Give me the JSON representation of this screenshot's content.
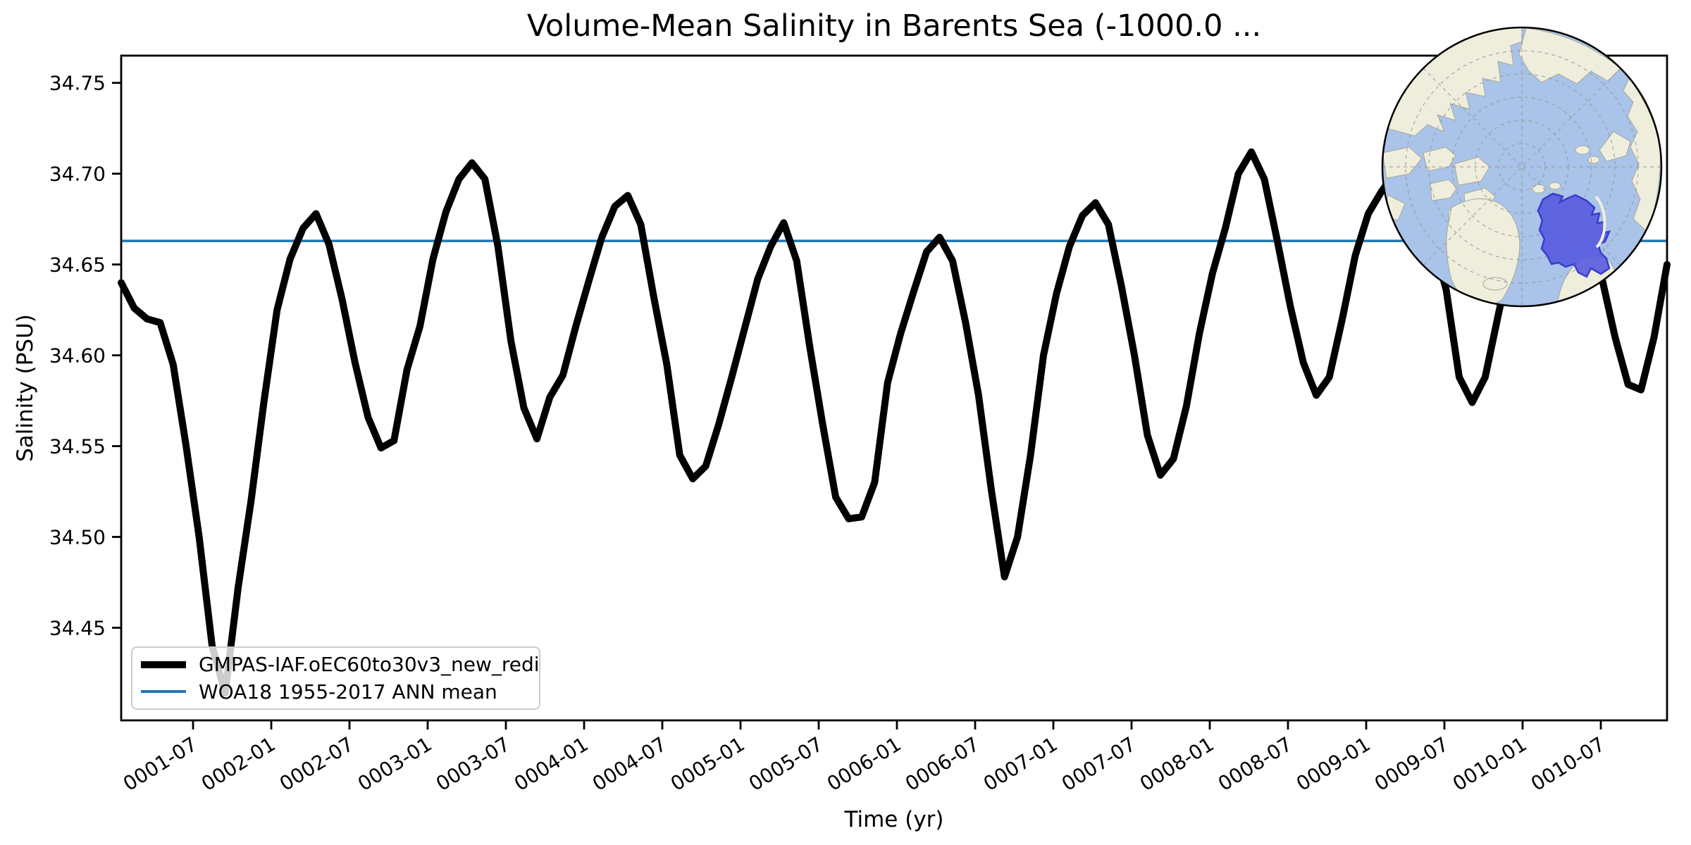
{
  "title": "Volume-Mean Salinity in Barents Sea (-1000.0 ...",
  "axes": {
    "xlabel": "Time (yr)",
    "ylabel": "Salinity (PSU)"
  },
  "legend": [
    {
      "label": "GMPAS-IAF.oEC60to30v3_new_redi",
      "color": "#000000",
      "style": "thick"
    },
    {
      "label": "WOA18 1955-2017 ANN mean",
      "color": "#1f77b4",
      "style": "thin"
    }
  ],
  "chart_data": {
    "type": "line",
    "title": "Volume-Mean Salinity in Barents Sea (-1000.0 ...",
    "xlabel": "Time (yr)",
    "ylabel": "Salinity (PSU)",
    "ylim": [
      34.399,
      34.765
    ],
    "y_ticks": [
      34.45,
      34.5,
      34.55,
      34.6,
      34.65,
      34.7,
      34.75
    ],
    "y_tick_labels": [
      "34.45",
      "34.50",
      "34.55",
      "34.60",
      "34.65",
      "34.70",
      "34.75"
    ],
    "x_tick_labels": [
      "0001-07",
      "0002-01",
      "0002-07",
      "0003-01",
      "0003-07",
      "0004-01",
      "0004-07",
      "0005-01",
      "0005-07",
      "0006-01",
      "0006-07",
      "0007-01",
      "0007-07",
      "0008-01",
      "0008-07",
      "0009-01",
      "0009-07",
      "0010-01",
      "0010-07"
    ],
    "x_start": "0001-01",
    "x_end": "0010-12",
    "x_step": "1 month",
    "grid": false,
    "legend_position": "lower left",
    "series": [
      {
        "name": "GMPAS-IAF.oEC60to30v3_new_redi",
        "color": "#000000",
        "values": [
          34.64,
          34.626,
          34.62,
          34.618,
          34.595,
          34.55,
          34.5,
          34.44,
          34.414,
          34.472,
          34.52,
          34.575,
          34.625,
          34.653,
          34.67,
          34.678,
          34.661,
          34.631,
          34.596,
          34.566,
          34.549,
          34.553,
          34.592,
          34.616,
          34.653,
          34.679,
          34.697,
          34.706,
          34.697,
          34.66,
          34.608,
          34.571,
          34.554,
          34.577,
          34.589,
          34.616,
          34.641,
          34.665,
          34.682,
          34.688,
          34.672,
          34.632,
          34.595,
          34.545,
          34.532,
          34.539,
          34.562,
          34.588,
          34.615,
          34.642,
          34.66,
          34.673,
          34.652,
          34.605,
          34.562,
          34.522,
          34.51,
          34.511,
          34.53,
          34.585,
          34.612,
          34.635,
          34.657,
          34.665,
          34.652,
          34.618,
          34.578,
          34.525,
          34.478,
          34.5,
          34.545,
          34.6,
          34.634,
          34.66,
          34.677,
          34.684,
          34.672,
          34.638,
          34.6,
          34.556,
          34.534,
          34.543,
          34.572,
          34.612,
          34.645,
          34.67,
          34.7,
          34.712,
          34.697,
          34.663,
          34.627,
          34.596,
          34.578,
          34.588,
          34.62,
          34.655,
          34.678,
          34.69,
          34.7,
          34.705,
          34.69,
          34.662,
          34.636,
          34.588,
          34.574,
          34.588,
          34.622,
          34.655,
          34.68,
          34.698,
          34.708,
          34.705,
          34.69,
          34.662,
          34.642,
          34.61,
          34.584,
          34.581,
          34.61,
          34.65
        ]
      },
      {
        "name": "WOA18 1955-2017 ANN mean",
        "type": "hline",
        "color": "#1f77b4",
        "value": 34.663
      }
    ],
    "inset_map": {
      "description": "North polar stereographic locator map with Barents Sea region highlighted",
      "ocean_color": "#a9c3e9",
      "land_color": "#efeedd",
      "highlight_color": "#5456de",
      "highlight_border_color": "#3a3ccc"
    }
  }
}
